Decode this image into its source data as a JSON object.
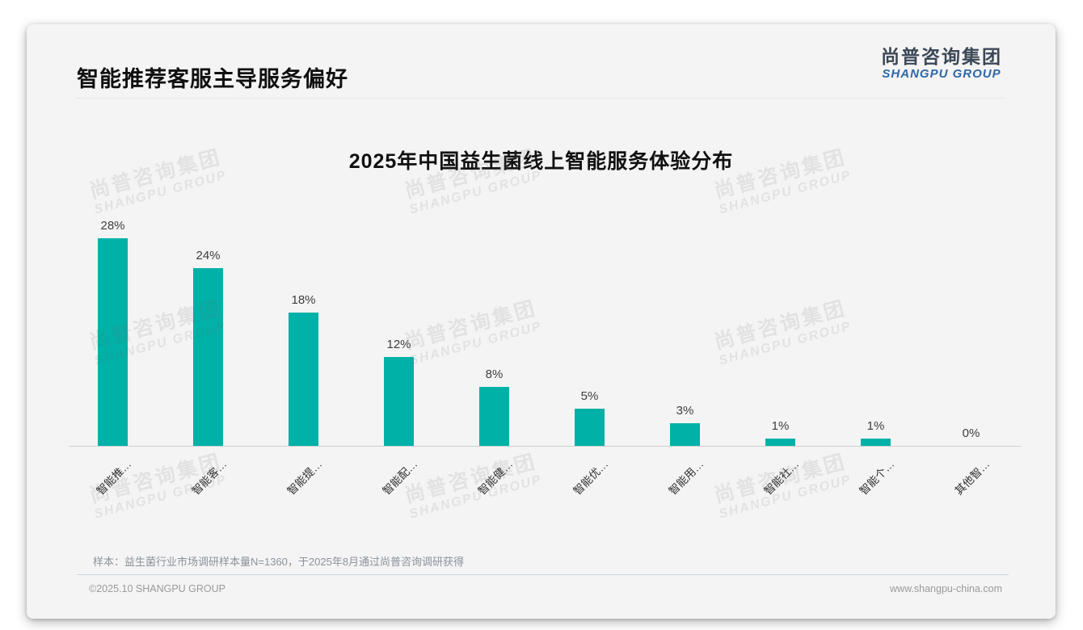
{
  "page": {
    "title": "智能推荐客服主导服务偏好",
    "logo": {
      "cn": "尚普咨询集团",
      "en": "SHANGPU GROUP"
    },
    "watermark": {
      "cn": "尚普咨询集团",
      "en": "SHANGPU GROUP"
    },
    "footnote": "样本：益生菌行业市场调研样本量N=1360，于2025年8月通过尚普咨询调研获得",
    "footer": {
      "left": "©2025.10 SHANGPU GROUP",
      "right": "www.shangpu-china.com"
    },
    "colors": {
      "accent_teal": "#00b1a8",
      "logo_blue": "#2e68a8",
      "logo_dark": "#3c4856",
      "card_bg": "#f4f4f4"
    }
  },
  "chart_data": {
    "type": "bar",
    "title": "2025年中国益生菌线上智能服务体验分布",
    "categories": [
      "智能推…",
      "智能客…",
      "智能提…",
      "智能配…",
      "智能健…",
      "智能优…",
      "智能用…",
      "智能社…",
      "智能个…",
      "其他智…"
    ],
    "values": [
      28,
      24,
      18,
      12,
      8,
      5,
      3,
      1,
      1,
      0
    ],
    "value_labels": [
      "28%",
      "24%",
      "18%",
      "12%",
      "8%",
      "5%",
      "3%",
      "1%",
      "1%",
      "0%"
    ],
    "xlabel": "",
    "ylabel": "",
    "ylim": [
      0,
      30
    ],
    "grid": false,
    "legend": "none",
    "bar_color": "#00b1a8",
    "label_rotation_deg": 45
  }
}
